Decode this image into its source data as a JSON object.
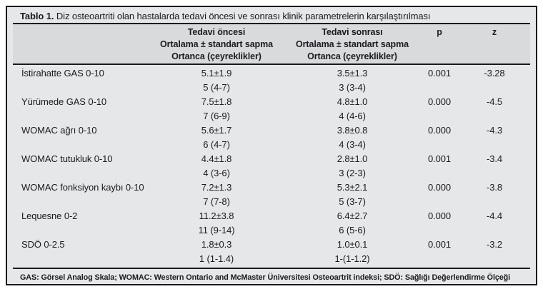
{
  "colors": {
    "paper_bg": "#ffffff",
    "table_bg": "#e6e7e9",
    "header_bg": "#d9dadc",
    "rule": "#1a1a1e",
    "text": "#1b1b1f"
  },
  "table": {
    "title": {
      "label": "Tablo 1.",
      "text": "Diz osteoartriti olan hastalarda tedavi öncesi ve sonrası klinik parametrelerin karşılaştırılması"
    },
    "header": {
      "before_line1": "Tedavi öncesi",
      "before_line2": "Ortalama ± standart sapma",
      "before_line3": "Ortanca (çeyreklikler)",
      "after_line1": "Tedavi sonrası",
      "after_line2": "Ortalama ± standart sapma",
      "after_line3": "Ortanca (çeyreklikler)",
      "p": "p",
      "z": "z"
    },
    "rows": [
      {
        "param": "İstirahatte GAS 0-10",
        "before_mean": "5.1±1.9",
        "before_median": "5 (4-7)",
        "after_mean": "3.5±1.3",
        "after_median": "3 (3-4)",
        "p": "0.001",
        "z": "-3.28"
      },
      {
        "param": "Yürümede GAS 0-10",
        "before_mean": "7.5±1.8",
        "before_median": "7 (6-9)",
        "after_mean": "4.8±1.0",
        "after_median": "4 (4-6)",
        "p": "0.000",
        "z": "-4.5"
      },
      {
        "param": "WOMAC ağrı 0-10",
        "before_mean": "5.6±1.7",
        "before_median": "6 (4-7)",
        "after_mean": "3.8±0.8",
        "after_median": "4 (3-4)",
        "p": "0.000",
        "z": "-4.3"
      },
      {
        "param": "WOMAC tutukluk 0-10",
        "before_mean": "4.4±1.8",
        "before_median": "4 (3-6)",
        "after_mean": "2.8±1.0",
        "after_median": "3 (2-3)",
        "p": "0.001",
        "z": "-3.4"
      },
      {
        "param": "WOMAC fonksiyon kaybı 0-10",
        "before_mean": "7.2±1.3",
        "before_median": "7 (7-8)",
        "after_mean": "5.3±2.1",
        "after_median": "5 (3-7)",
        "p": "0.000",
        "z": "-3.8"
      },
      {
        "param": "Lequesne 0-2",
        "before_mean": "11.2±3.8",
        "before_median": "11 (9-14)",
        "after_mean": "6.4±2.7",
        "after_median": "6 (5-6)",
        "p": "0.000",
        "z": "-4.4"
      },
      {
        "param": "SDÖ 0-2.5",
        "before_mean": "1.8±0.3",
        "before_median": "1 (1-1.4)",
        "after_mean": "1.0±0.1",
        "after_median": "1-(1-1.2)",
        "p": "0.001",
        "z": "-3.2"
      }
    ],
    "footnote": "GAS: Görsel Analog Skala; WOMAC: Western Ontario and McMaster Üniversitesi Osteoartrit indeksi; SDÖ: Sağlığı Değerlendirme Ölçeği"
  }
}
